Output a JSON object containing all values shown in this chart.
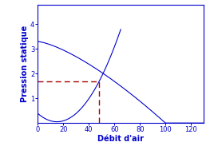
{
  "title": "",
  "xlabel": "Débit d'air",
  "ylabel": "Pression statique",
  "xlim": [
    0,
    130
  ],
  "ylim": [
    0,
    4.8
  ],
  "xticks": [
    0,
    20,
    40,
    60,
    80,
    100,
    120
  ],
  "yticks": [
    1,
    2,
    3,
    4
  ],
  "intersection_x": 48,
  "intersection_y": 1.68,
  "curve_color": "#0000cc",
  "dashed_color": "#aa0000",
  "background_color": "#ffffff",
  "xlabel_fontsize": 7,
  "ylabel_fontsize": 7,
  "tick_fontsize": 6
}
